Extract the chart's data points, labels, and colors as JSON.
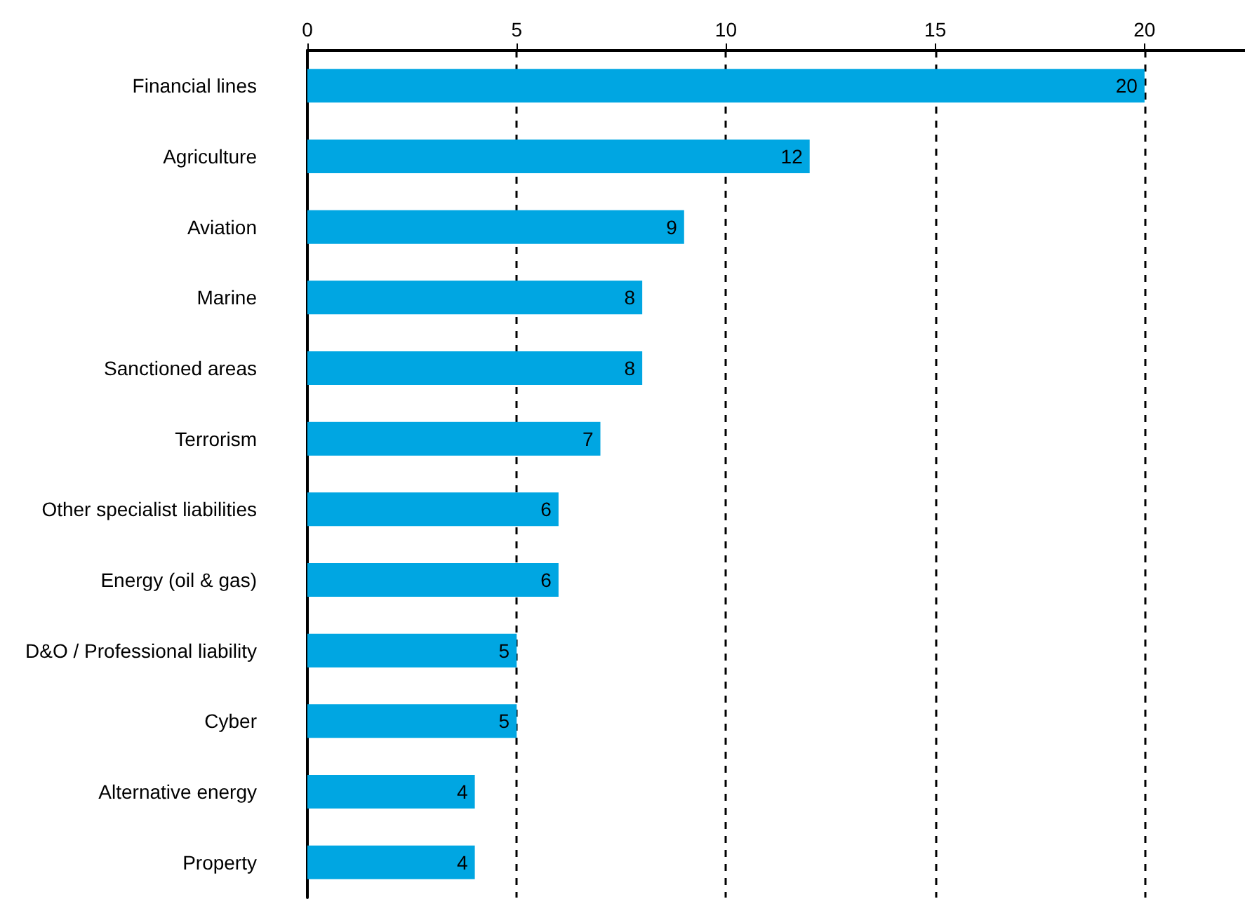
{
  "chart_data": {
    "type": "bar",
    "orientation": "horizontal",
    "categories": [
      "Financial lines",
      "Agriculture",
      "Aviation",
      "Marine",
      "Sanctioned areas",
      "Terrorism",
      "Other specialist liabilities",
      "Energy (oil & gas)",
      "D&O / Professional liability",
      "Cyber",
      "Alternative energy",
      "Property"
    ],
    "values": [
      20,
      12,
      9,
      8,
      8,
      7,
      6,
      6,
      5,
      5,
      4,
      4
    ],
    "color": "#00a6e2",
    "xlim": [
      0,
      22.4
    ],
    "xticks": [
      0,
      5,
      10,
      15,
      20
    ],
    "grid": "x",
    "data_labels": true
  }
}
